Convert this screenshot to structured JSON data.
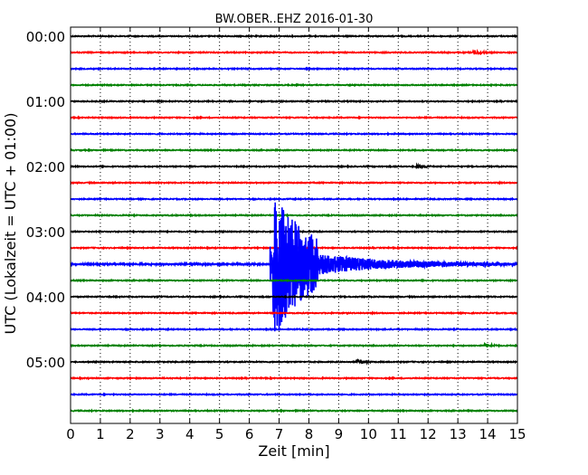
{
  "chart_data": {
    "type": "line",
    "title": "BW.OBER..EHZ 2016-01-30",
    "xlabel": "Zeit  [min]",
    "ylabel": "UTC (Lokalzeit = UTC + 01:00)",
    "xlim": [
      0,
      15
    ],
    "x_ticks": [
      "0",
      "1",
      "2",
      "3",
      "4",
      "5",
      "6",
      "7",
      "8",
      "9",
      "10",
      "11",
      "12",
      "13",
      "14",
      "15"
    ],
    "y_ticks": [
      "00:00",
      "01:00",
      "02:00",
      "03:00",
      "04:00",
      "05:00"
    ],
    "grid": "vertical-dotted",
    "trace_interval_min": 15,
    "trace_colors": [
      "#000000",
      "#ff0000",
      "#0000ff",
      "#008000"
    ],
    "traces_count": 24,
    "event": {
      "trace_index": 14,
      "trace_start_utc": "03:30",
      "onset_min": 6.7,
      "peak_min": 6.8,
      "strong_until_min": 8.3,
      "coda_until_min": 15
    },
    "minor_events": [
      {
        "trace_index": 1,
        "start_min": 13.5,
        "amplitude": "small"
      },
      {
        "trace_index": 8,
        "start_min": 11.6,
        "amplitude": "small"
      },
      {
        "trace_index": 20,
        "start_min": 9.6,
        "amplitude": "small"
      },
      {
        "trace_index": 19,
        "start_min": 13.9,
        "amplitude": "small"
      }
    ]
  }
}
